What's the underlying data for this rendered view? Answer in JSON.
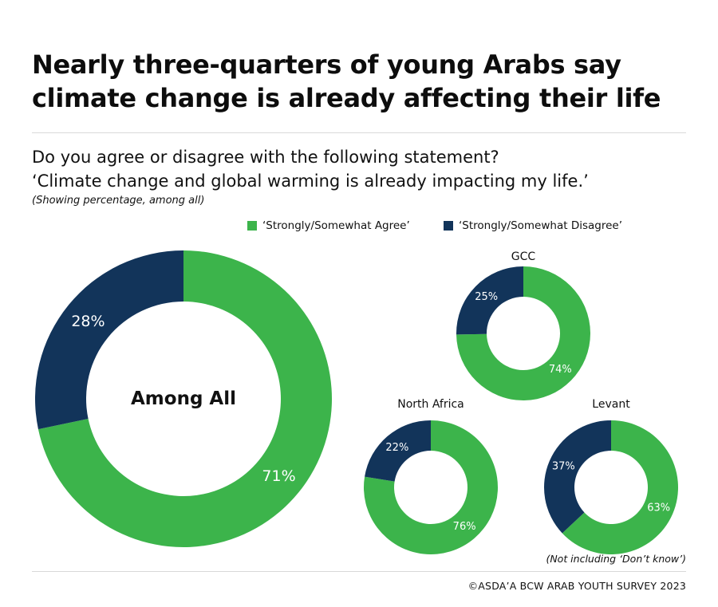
{
  "header": {
    "title_line1": "Nearly three-quarters of young Arabs say",
    "title_line2": "climate change is already affecting their life"
  },
  "question": {
    "line1": "Do you agree or disagree with the following statement?",
    "line2": "‘Climate change and global warming is already impacting my life.’",
    "note": "(Showing percentage, among all)"
  },
  "legend": {
    "agree": "‘Strongly/Somewhat Agree’",
    "disagree": "‘Strongly/Somewhat Disagree’"
  },
  "colors": {
    "agree": "#3cb44b",
    "disagree": "#12345a"
  },
  "chart_data": {
    "type": "pie",
    "series_names": [
      "‘Strongly/Somewhat Agree’",
      "‘Strongly/Somewhat Disagree’"
    ],
    "charts": [
      {
        "name": "Among All",
        "label_inside": true,
        "agree": 71,
        "disagree": 28,
        "agree_label": "71%",
        "disagree_label": "28%"
      },
      {
        "name": "GCC",
        "label_inside": false,
        "agree": 74,
        "disagree": 25,
        "agree_label": "74%",
        "disagree_label": "25%"
      },
      {
        "name": "North Africa",
        "label_inside": false,
        "agree": 76,
        "disagree": 22,
        "agree_label": "76%",
        "disagree_label": "22%"
      },
      {
        "name": "Levant",
        "label_inside": false,
        "agree": 63,
        "disagree": 37,
        "agree_label": "63%",
        "disagree_label": "37%"
      }
    ]
  },
  "footnote": "(Not including ‘Don’t know’)",
  "source": "©ASDA’A BCW ARAB YOUTH SURVEY 2023"
}
